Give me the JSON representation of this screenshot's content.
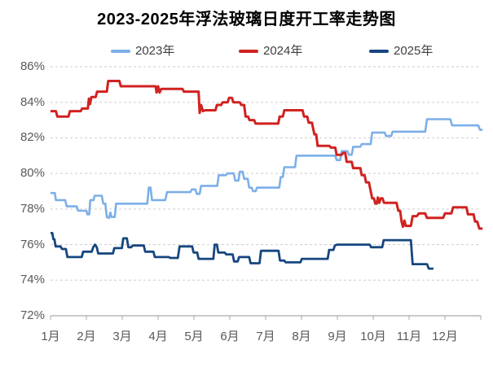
{
  "title": "2023-2025年浮法玻璃日度开工率走势图",
  "chart_data": {
    "type": "line",
    "title": "2023-2025年浮法玻璃日度开工率走势图",
    "unit": "%",
    "legend_position": "top",
    "grid": "horizontal-dashed",
    "x_axis": {
      "tick_labels": [
        "1月",
        "2月",
        "3月",
        "4月",
        "5月",
        "6月",
        "7月",
        "8月",
        "9月",
        "10月",
        "11月",
        "12月"
      ],
      "range_months": [
        0,
        12
      ]
    },
    "y_axis": {
      "tick_labels": [
        "86%",
        "84%",
        "82%",
        "80%",
        "78%",
        "76%",
        "74%",
        "72%"
      ],
      "min": 72,
      "max": 86,
      "tick_step": 2
    },
    "series": [
      {
        "name": "2023年",
        "color": "#7CAFE8",
        "points": [
          [
            0,
            78.9
          ],
          [
            0.12,
            78.9
          ],
          [
            0.15,
            78.5
          ],
          [
            0.41,
            78.5
          ],
          [
            0.45,
            78.15
          ],
          [
            0.73,
            78.15
          ],
          [
            0.77,
            77.9
          ],
          [
            1.0,
            77.9
          ],
          [
            1.03,
            77.7
          ],
          [
            1.08,
            77.7
          ],
          [
            1.11,
            78.5
          ],
          [
            1.2,
            78.5
          ],
          [
            1.23,
            78.75
          ],
          [
            1.43,
            78.75
          ],
          [
            1.47,
            78.3
          ],
          [
            1.53,
            78.3
          ],
          [
            1.57,
            77.55
          ],
          [
            1.63,
            77.5
          ],
          [
            1.67,
            77.8
          ],
          [
            1.7,
            77.55
          ],
          [
            1.79,
            77.55
          ],
          [
            1.83,
            78.3
          ],
          [
            2.7,
            78.3
          ],
          [
            2.74,
            79.2
          ],
          [
            2.79,
            79.2
          ],
          [
            2.83,
            78.5
          ],
          [
            3.2,
            78.5
          ],
          [
            3.25,
            78.95
          ],
          [
            3.9,
            78.95
          ],
          [
            3.94,
            79.1
          ],
          [
            4.04,
            79.1
          ],
          [
            4.08,
            78.85
          ],
          [
            4.16,
            78.85
          ],
          [
            4.2,
            79.3
          ],
          [
            4.65,
            79.3
          ],
          [
            4.69,
            79.9
          ],
          [
            4.89,
            79.9
          ],
          [
            4.93,
            80.0
          ],
          [
            5.11,
            80.0
          ],
          [
            5.15,
            79.6
          ],
          [
            5.24,
            79.6
          ],
          [
            5.28,
            80.1
          ],
          [
            5.36,
            80.1
          ],
          [
            5.4,
            79.7
          ],
          [
            5.5,
            79.7
          ],
          [
            5.54,
            79.2
          ],
          [
            5.61,
            79.2
          ],
          [
            5.65,
            79.0
          ],
          [
            5.72,
            79.0
          ],
          [
            5.76,
            79.2
          ],
          [
            6.38,
            79.2
          ],
          [
            6.42,
            79.8
          ],
          [
            6.48,
            79.8
          ],
          [
            6.52,
            80.35
          ],
          [
            6.82,
            80.35
          ],
          [
            6.86,
            81.0
          ],
          [
            7.94,
            81.0
          ],
          [
            7.98,
            80.75
          ],
          [
            8.08,
            80.75
          ],
          [
            8.12,
            81.25
          ],
          [
            8.28,
            81.25
          ],
          [
            8.32,
            81.05
          ],
          [
            8.4,
            81.05
          ],
          [
            8.44,
            81.5
          ],
          [
            8.64,
            81.5
          ],
          [
            8.68,
            81.65
          ],
          [
            8.93,
            81.65
          ],
          [
            8.97,
            82.3
          ],
          [
            9.32,
            82.3
          ],
          [
            9.36,
            82.1
          ],
          [
            9.5,
            82.1
          ],
          [
            9.54,
            82.35
          ],
          [
            10.45,
            82.35
          ],
          [
            10.5,
            83.05
          ],
          [
            11.15,
            83.05
          ],
          [
            11.2,
            82.7
          ],
          [
            11.93,
            82.7
          ],
          [
            11.98,
            82.45
          ],
          [
            12.05,
            82.45
          ]
        ]
      },
      {
        "name": "2024年",
        "color": "#D02220",
        "points": [
          [
            0,
            83.5
          ],
          [
            0.15,
            83.5
          ],
          [
            0.19,
            83.2
          ],
          [
            0.5,
            83.2
          ],
          [
            0.54,
            83.5
          ],
          [
            0.84,
            83.5
          ],
          [
            0.88,
            83.65
          ],
          [
            1.04,
            83.65
          ],
          [
            1.07,
            84.2
          ],
          [
            1.1,
            83.9
          ],
          [
            1.14,
            84.3
          ],
          [
            1.26,
            84.3
          ],
          [
            1.3,
            84.6
          ],
          [
            1.57,
            84.6
          ],
          [
            1.61,
            85.2
          ],
          [
            1.92,
            85.2
          ],
          [
            1.96,
            84.9
          ],
          [
            2.93,
            84.9
          ],
          [
            2.96,
            84.55
          ],
          [
            3.0,
            84.9
          ],
          [
            3.04,
            84.55
          ],
          [
            3.09,
            84.75
          ],
          [
            3.68,
            84.75
          ],
          [
            3.72,
            84.6
          ],
          [
            4.13,
            84.6
          ],
          [
            4.16,
            83.4
          ],
          [
            4.2,
            83.85
          ],
          [
            4.25,
            83.5
          ],
          [
            4.31,
            83.55
          ],
          [
            4.6,
            83.55
          ],
          [
            4.64,
            83.85
          ],
          [
            4.76,
            83.85
          ],
          [
            4.8,
            84.0
          ],
          [
            4.94,
            84.0
          ],
          [
            4.98,
            84.25
          ],
          [
            5.06,
            84.25
          ],
          [
            5.1,
            84.0
          ],
          [
            5.28,
            84.0
          ],
          [
            5.32,
            83.85
          ],
          [
            5.4,
            83.85
          ],
          [
            5.44,
            83.2
          ],
          [
            5.51,
            83.2
          ],
          [
            5.55,
            83.0
          ],
          [
            5.68,
            83.0
          ],
          [
            5.72,
            82.8
          ],
          [
            6.35,
            82.8
          ],
          [
            6.39,
            83.2
          ],
          [
            6.48,
            83.2
          ],
          [
            6.52,
            83.55
          ],
          [
            7.03,
            83.55
          ],
          [
            7.07,
            83.2
          ],
          [
            7.16,
            83.2
          ],
          [
            7.2,
            82.85
          ],
          [
            7.29,
            82.85
          ],
          [
            7.36,
            82.2
          ],
          [
            7.41,
            82.2
          ],
          [
            7.45,
            81.55
          ],
          [
            7.78,
            81.55
          ],
          [
            7.82,
            81.45
          ],
          [
            7.94,
            81.45
          ],
          [
            7.98,
            81.05
          ],
          [
            8.12,
            81.05
          ],
          [
            8.16,
            81.15
          ],
          [
            8.22,
            81.15
          ],
          [
            8.26,
            80.65
          ],
          [
            8.4,
            80.65
          ],
          [
            8.44,
            80.3
          ],
          [
            8.64,
            80.3
          ],
          [
            8.68,
            79.9
          ],
          [
            8.76,
            79.9
          ],
          [
            8.8,
            79.5
          ],
          [
            8.88,
            79.5
          ],
          [
            8.92,
            79.1
          ],
          [
            8.97,
            78.6
          ],
          [
            9.02,
            78.6
          ],
          [
            9.06,
            78.3
          ],
          [
            9.1,
            78.3
          ],
          [
            9.13,
            78.65
          ],
          [
            9.17,
            78.35
          ],
          [
            9.21,
            78.6
          ],
          [
            9.26,
            78.6
          ],
          [
            9.3,
            78.35
          ],
          [
            9.65,
            78.35
          ],
          [
            9.7,
            77.9
          ],
          [
            9.75,
            77.9
          ],
          [
            9.79,
            77.3
          ],
          [
            9.83,
            77.0
          ],
          [
            9.87,
            77.35
          ],
          [
            9.91,
            77.05
          ],
          [
            10.05,
            77.05
          ],
          [
            10.1,
            77.6
          ],
          [
            10.22,
            77.6
          ],
          [
            10.27,
            77.75
          ],
          [
            10.45,
            77.75
          ],
          [
            10.5,
            77.5
          ],
          [
            10.95,
            77.5
          ],
          [
            11.0,
            77.75
          ],
          [
            11.18,
            77.75
          ],
          [
            11.23,
            78.1
          ],
          [
            11.6,
            78.1
          ],
          [
            11.64,
            77.7
          ],
          [
            11.8,
            77.7
          ],
          [
            11.84,
            77.3
          ],
          [
            11.9,
            77.3
          ],
          [
            11.96,
            76.9
          ],
          [
            12.05,
            76.9
          ]
        ]
      },
      {
        "name": "2025年",
        "color": "#16467F",
        "points": [
          [
            0,
            76.65
          ],
          [
            0.05,
            76.65
          ],
          [
            0.08,
            76.3
          ],
          [
            0.11,
            76.3
          ],
          [
            0.14,
            75.9
          ],
          [
            0.28,
            75.9
          ],
          [
            0.32,
            75.75
          ],
          [
            0.43,
            75.75
          ],
          [
            0.47,
            75.3
          ],
          [
            0.87,
            75.3
          ],
          [
            0.91,
            75.6
          ],
          [
            1.15,
            75.6
          ],
          [
            1.19,
            75.85
          ],
          [
            1.24,
            76.0
          ],
          [
            1.29,
            75.85
          ],
          [
            1.33,
            75.5
          ],
          [
            1.74,
            75.5
          ],
          [
            1.78,
            75.8
          ],
          [
            1.99,
            75.8
          ],
          [
            2.03,
            76.35
          ],
          [
            2.13,
            76.35
          ],
          [
            2.17,
            75.85
          ],
          [
            2.25,
            75.85
          ],
          [
            2.29,
            75.95
          ],
          [
            2.6,
            75.95
          ],
          [
            2.64,
            75.6
          ],
          [
            2.87,
            75.6
          ],
          [
            2.91,
            75.3
          ],
          [
            3.3,
            75.3
          ],
          [
            3.34,
            75.25
          ],
          [
            3.55,
            75.25
          ],
          [
            3.6,
            75.9
          ],
          [
            3.95,
            75.9
          ],
          [
            3.99,
            75.55
          ],
          [
            4.09,
            75.55
          ],
          [
            4.13,
            75.2
          ],
          [
            4.54,
            75.2
          ],
          [
            4.58,
            76.0
          ],
          [
            4.64,
            76.0
          ],
          [
            4.68,
            75.55
          ],
          [
            4.86,
            75.55
          ],
          [
            4.9,
            75.45
          ],
          [
            5.08,
            75.45
          ],
          [
            5.12,
            75.05
          ],
          [
            5.22,
            75.05
          ],
          [
            5.26,
            75.3
          ],
          [
            5.54,
            75.3
          ],
          [
            5.58,
            74.95
          ],
          [
            5.83,
            74.95
          ],
          [
            5.87,
            75.65
          ],
          [
            6.36,
            75.65
          ],
          [
            6.4,
            75.1
          ],
          [
            6.52,
            75.1
          ],
          [
            6.56,
            75.0
          ],
          [
            6.97,
            75.0
          ],
          [
            7.01,
            75.2
          ],
          [
            7.73,
            75.2
          ],
          [
            7.77,
            75.7
          ],
          [
            7.89,
            75.7
          ],
          [
            7.93,
            75.95
          ],
          [
            8.0,
            76.0
          ],
          [
            8.9,
            76.0
          ],
          [
            8.94,
            75.85
          ],
          [
            9.25,
            75.85
          ],
          [
            9.29,
            76.25
          ],
          [
            10.05,
            76.25
          ],
          [
            10.1,
            74.9
          ],
          [
            10.5,
            74.9
          ],
          [
            10.55,
            74.65
          ],
          [
            10.68,
            74.65
          ]
        ]
      }
    ]
  }
}
